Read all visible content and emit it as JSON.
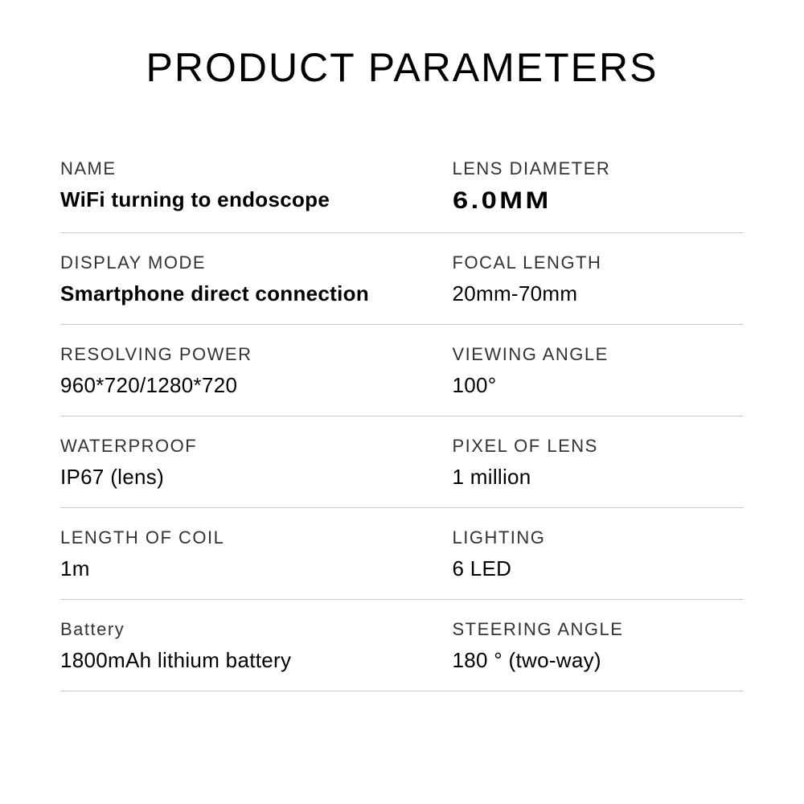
{
  "title": "PRODUCT PARAMETERS",
  "rows": [
    {
      "left": {
        "label": "NAME",
        "value": "WiFi turning to endoscope",
        "bold": true
      },
      "right": {
        "label": "LENS DIAMETER",
        "value": "6.0MM",
        "tech": true
      }
    },
    {
      "left": {
        "label": "DISPLAY MODE",
        "value": "Smartphone direct connection",
        "bold": true
      },
      "right": {
        "label": "FOCAL LENGTH",
        "value": "20mm-70mm"
      }
    },
    {
      "left": {
        "label": "RESOLVING POWER",
        "value": "960*720/1280*720"
      },
      "right": {
        "label": "VIEWING ANGLE",
        "value": "100°"
      }
    },
    {
      "left": {
        "label": "WATERPROOF",
        "value": "IP67 (lens)"
      },
      "right": {
        "label": "PIXEL OF LENS",
        "value": "1 million"
      }
    },
    {
      "left": {
        "label": "LENGTH OF COIL",
        "value": "1m"
      },
      "right": {
        "label": "LIGHTING",
        "value": "6 LED"
      }
    },
    {
      "left": {
        "label": "Battery",
        "value": "1800mAh lithium battery"
      },
      "right": {
        "label": "STEERING ANGLE",
        "value": "180 ° (two-way)"
      }
    }
  ],
  "styling": {
    "background_color": "#ffffff",
    "text_color": "#000000",
    "label_color": "#333333",
    "divider_color": "#cccccc",
    "title_fontsize": 50,
    "label_fontsize": 22,
    "value_fontsize": 26,
    "columns": 2,
    "row_count": 6
  }
}
